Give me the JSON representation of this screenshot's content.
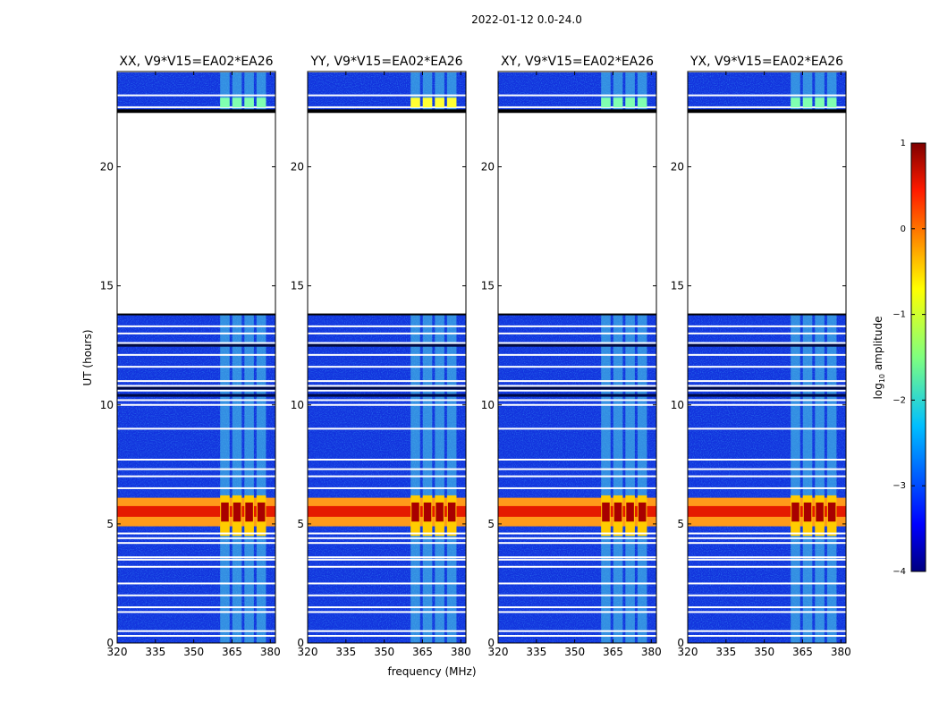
{
  "figure": {
    "suptitle": "2022-01-12 0.0-24.0",
    "xlabel": "frequency (MHz)",
    "ylabel": "UT (hours)"
  },
  "chart_data": {
    "type": "heatmap",
    "title": "2022-01-12 0.0-24.0",
    "xlabel": "frequency (MHz)",
    "ylabel": "UT (hours)",
    "xlim": [
      320,
      382
    ],
    "ylim": [
      0,
      24
    ],
    "xticks": [
      320,
      335,
      350,
      365,
      380
    ],
    "yticks": [
      0,
      5,
      10,
      15,
      20
    ],
    "panels": [
      {
        "title": "XX, V9*V15=EA02*EA26",
        "pol": "XX"
      },
      {
        "title": "YY, V9*V15=EA02*EA26",
        "pol": "YY"
      },
      {
        "title": "XY, V9*V15=EA02*EA26",
        "pol": "XY"
      },
      {
        "title": "YX, V9*V15=EA02*EA26",
        "pol": "YX"
      }
    ],
    "data_gaps_hours": [
      [
        13.8,
        22.3
      ]
    ],
    "flagged_rows_hours": [
      0.3,
      0.5,
      1.3,
      1.5,
      2.0,
      2.5,
      3.2,
      3.5,
      3.6,
      4.2,
      4.4,
      4.6,
      6.5,
      7.0,
      7.3,
      7.7,
      9.0,
      10.0,
      10.2,
      10.6,
      10.8,
      11.0,
      11.6,
      12.1,
      12.6,
      13.0,
      13.3,
      22.5,
      23.0,
      24.0
    ],
    "features": [
      {
        "label": "RFI burst",
        "ut_range": [
          4.5,
          6.2
        ],
        "freq_range": [
          320,
          382
        ],
        "log10_amplitude": 0.6
      },
      {
        "label": "RFI channels",
        "freq_range": [
          360,
          379
        ],
        "log10_amplitude": -2
      }
    ],
    "colorbar": {
      "label": "log10 amplitude",
      "label_main": "log",
      "label_sub": "10",
      "label_rest": " amplitude",
      "range": [
        -4,
        1
      ],
      "ticks": [
        "1",
        "0",
        "−1",
        "−2",
        "−3",
        "−4"
      ],
      "colormap": "jet"
    }
  }
}
